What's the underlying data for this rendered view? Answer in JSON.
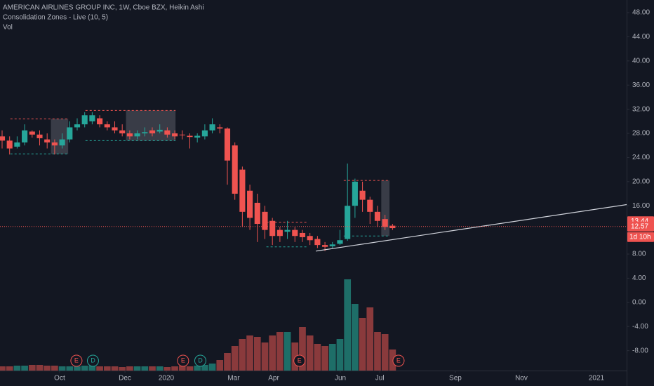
{
  "chart_data": {
    "type": "candlestick",
    "title": "AMERICAN AIRLINES GROUP INC, 1W, Cboe BZX, Heikin Ashi",
    "indicators": [
      "Consolidation Zones - Live (10, 5)",
      "Vol"
    ],
    "up_color": "#26a69a",
    "down_color": "#ef5350",
    "volume_up_color": "#1e6e68",
    "volume_down_color": "#8a3a3c",
    "open": [
      27.5,
      26.8,
      25.8,
      26.5,
      28.3,
      27.8,
      27,
      26.5,
      26,
      27,
      29,
      29.5,
      30,
      30.5,
      29.5,
      29,
      28.5,
      28,
      27.5,
      28,
      28.5,
      28.3,
      28.5,
      28,
      27.8,
      27.6,
      27.3,
      27.5,
      28.5,
      29,
      28.8,
      26,
      22,
      18.5,
      16.5,
      15,
      13.5,
      12,
      11.7,
      12,
      11.5,
      11,
      10.5,
      9.5,
      9.3,
      9.7,
      10.5,
      16,
      18.5,
      17,
      15,
      13.8,
      12.7
    ],
    "high": [
      28.5,
      27.5,
      27.5,
      29.5,
      28.5,
      28.5,
      28,
      27,
      28,
      30,
      30.5,
      31.5,
      31.5,
      31,
      30,
      30,
      29.5,
      28.5,
      28.5,
      29,
      29,
      29.5,
      29,
      28.5,
      28.5,
      28,
      28,
      29.5,
      30.5,
      29.5,
      29,
      26.5,
      22.5,
      19.5,
      18,
      16,
      14,
      12.5,
      13.5,
      12.5,
      12,
      11.5,
      11,
      10,
      10,
      12,
      23,
      20.5,
      20,
      17.5,
      16,
      14.5,
      13
    ],
    "low": [
      25.5,
      24.5,
      25.5,
      26,
      27.3,
      26,
      25.5,
      24.5,
      25.5,
      26.5,
      28.5,
      29,
      29.5,
      29,
      28.5,
      28,
      27.5,
      27,
      27,
      27.5,
      27.5,
      28,
      27.3,
      27,
      27,
      25.5,
      26.5,
      27,
      28,
      28,
      19.5,
      17,
      12.5,
      12,
      10,
      10.5,
      9.5,
      10,
      10.5,
      10,
      10,
      9.5,
      9,
      8.5,
      9,
      9.5,
      10.2,
      14,
      15,
      13,
      12.5,
      12,
      12
    ],
    "close": [
      26.8,
      25.5,
      26.5,
      28.5,
      27.8,
      27.2,
      26.5,
      26,
      27,
      29,
      29.5,
      31,
      31,
      29.5,
      29,
      28.5,
      28,
      27.5,
      28,
      28.2,
      28,
      28.6,
      27.8,
      27.5,
      27.7,
      27.4,
      27.6,
      28.5,
      29.5,
      28.8,
      23.5,
      18,
      15,
      14,
      13,
      12,
      11,
      11,
      12,
      11,
      10.8,
      10.3,
      9.5,
      9.2,
      9.6,
      10.3,
      16,
      20,
      17,
      15,
      13.5,
      12.5,
      12.3
    ],
    "volume": [
      6,
      6,
      7,
      7,
      8,
      8,
      7,
      7,
      6,
      6,
      6,
      7,
      7,
      6,
      6,
      6,
      5,
      6,
      6,
      6,
      6,
      6,
      5,
      6,
      7,
      6,
      7,
      8,
      10,
      15,
      25,
      35,
      45,
      50,
      48,
      40,
      50,
      55,
      55,
      40,
      62,
      50,
      38,
      35,
      38,
      45,
      130,
      95,
      75,
      90,
      55,
      52,
      30
    ],
    "vlim": [
      0,
      160
    ],
    "xlim": [
      -0.28,
      83.18
    ],
    "ylim": [
      -11.3,
      50.1
    ],
    "yticks": [
      {
        "value": 48,
        "label": "48.00"
      },
      {
        "value": 44,
        "label": "44.00"
      },
      {
        "value": 40,
        "label": "40.00"
      },
      {
        "value": 36,
        "label": "36.00"
      },
      {
        "value": 32,
        "label": "32.00"
      },
      {
        "value": 28,
        "label": "28.00"
      },
      {
        "value": 24,
        "label": "24.00"
      },
      {
        "value": 20,
        "label": "20.00"
      },
      {
        "value": 16,
        "label": "16.00"
      },
      {
        "value": 8,
        "label": "8.00"
      },
      {
        "value": 4,
        "label": "4.00"
      },
      {
        "value": 0,
        "label": "0.00"
      },
      {
        "value": -4,
        "label": "-4.00"
      },
      {
        "value": -8,
        "label": "-8.00"
      }
    ],
    "xticks": [
      {
        "value": 7.66,
        "label": "Oct"
      },
      {
        "value": 16.36,
        "label": "Dec"
      },
      {
        "value": 21.87,
        "label": "2020"
      },
      {
        "value": 30.84,
        "label": "Mar"
      },
      {
        "value": 36.17,
        "label": "Apr"
      },
      {
        "value": 45.05,
        "label": "Jun"
      },
      {
        "value": 50.3,
        "label": "Jul"
      },
      {
        "value": 60.37,
        "label": "Sep"
      },
      {
        "value": 69.16,
        "label": "Nov"
      },
      {
        "value": 79.16,
        "label": "2021"
      }
    ],
    "price_labels": [
      13.44,
      12.57
    ],
    "countdown": "1d 10h",
    "zones": [
      {
        "x0": 1.1,
        "x1": 8.8,
        "shade_from": 6.5,
        "top": 30.4,
        "bottom": 24.6
      },
      {
        "x0": 11.1,
        "x1": 23.1,
        "shade_from": 16.5,
        "top": 31.8,
        "bottom": 26.8
      },
      {
        "x0": 35.2,
        "x1": 40.8,
        "top": 13.3,
        "bottom": 9.2
      },
      {
        "x0": 45.5,
        "x1": 51.6,
        "shade_from": 50.5,
        "top": 20.2,
        "bottom": 11.0
      }
    ],
    "trend_line": [
      [
        41.8,
        8.5
      ],
      [
        83.18,
        16.2
      ]
    ],
    "events": [
      {
        "x": 9.9,
        "label": "E",
        "color": "#ef5350"
      },
      {
        "x": 12.1,
        "label": "D",
        "color": "#26a69a"
      },
      {
        "x": 24.1,
        "label": "E",
        "color": "#ef5350"
      },
      {
        "x": 26.4,
        "label": "D",
        "color": "#26a69a"
      },
      {
        "x": 39.6,
        "label": "E",
        "color": "#ef5350"
      },
      {
        "x": 52.8,
        "label": "E",
        "color": "#ef5350"
      }
    ]
  }
}
